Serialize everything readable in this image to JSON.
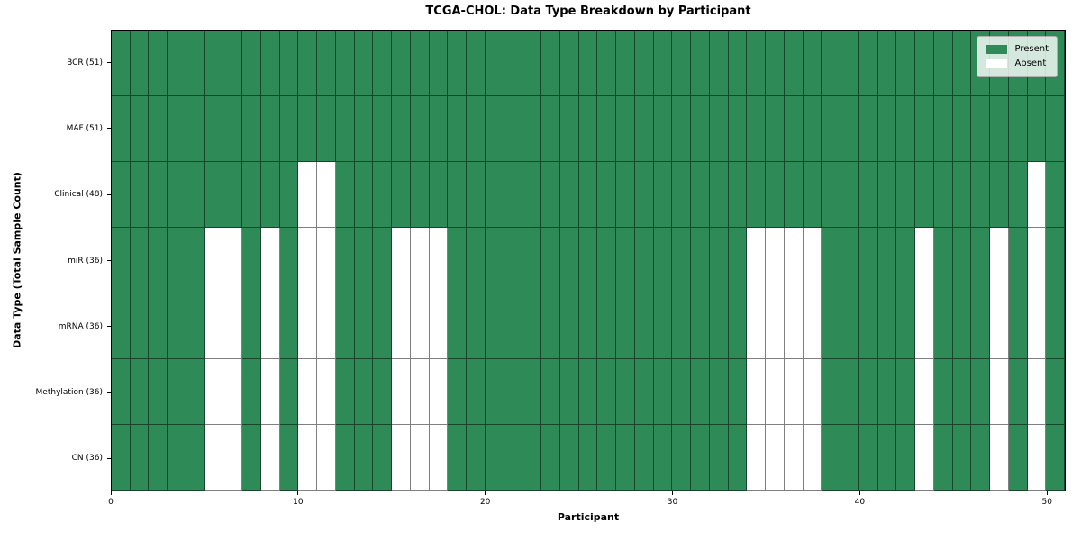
{
  "chart_data": {
    "type": "heatmap",
    "title": "TCGA-CHOL: Data Type Breakdown by Participant",
    "xlabel": "Participant",
    "ylabel": "Data Type (Total Sample Count)",
    "x_range": [
      0,
      51
    ],
    "x_ticks": [
      0,
      10,
      20,
      30,
      40,
      50
    ],
    "n_participants": 51,
    "grid": true,
    "legend_position": "upper right",
    "rows": [
      {
        "label": "BCR (51)",
        "present_count": 51,
        "absent_participants": []
      },
      {
        "label": "MAF (51)",
        "present_count": 51,
        "absent_participants": []
      },
      {
        "label": "Clinical (48)",
        "present_count": 48,
        "absent_participants": [
          10,
          11,
          49
        ]
      },
      {
        "label": "miR (36)",
        "present_count": 36,
        "absent_participants": [
          5,
          6,
          8,
          10,
          11,
          15,
          16,
          17,
          34,
          35,
          36,
          37,
          43,
          47,
          49
        ]
      },
      {
        "label": "mRNA (36)",
        "present_count": 36,
        "absent_participants": [
          5,
          6,
          8,
          10,
          11,
          15,
          16,
          17,
          34,
          35,
          36,
          37,
          43,
          47,
          49
        ]
      },
      {
        "label": "Methylation (36)",
        "present_count": 36,
        "absent_participants": [
          5,
          6,
          8,
          10,
          11,
          15,
          16,
          17,
          34,
          35,
          36,
          37,
          43,
          47,
          49
        ]
      },
      {
        "label": "CN (36)",
        "present_count": 36,
        "absent_participants": [
          5,
          6,
          8,
          10,
          11,
          15,
          16,
          17,
          34,
          35,
          36,
          37,
          43,
          47,
          49
        ]
      }
    ],
    "legend": [
      {
        "label": "Present",
        "color": "#2e8b57"
      },
      {
        "label": "Absent",
        "color": "#ffffff"
      }
    ],
    "colors": {
      "present": "#2e8b57",
      "absent": "#ffffff",
      "gridline": "rgba(0,0,0,0.5)",
      "spine": "#000000"
    }
  }
}
